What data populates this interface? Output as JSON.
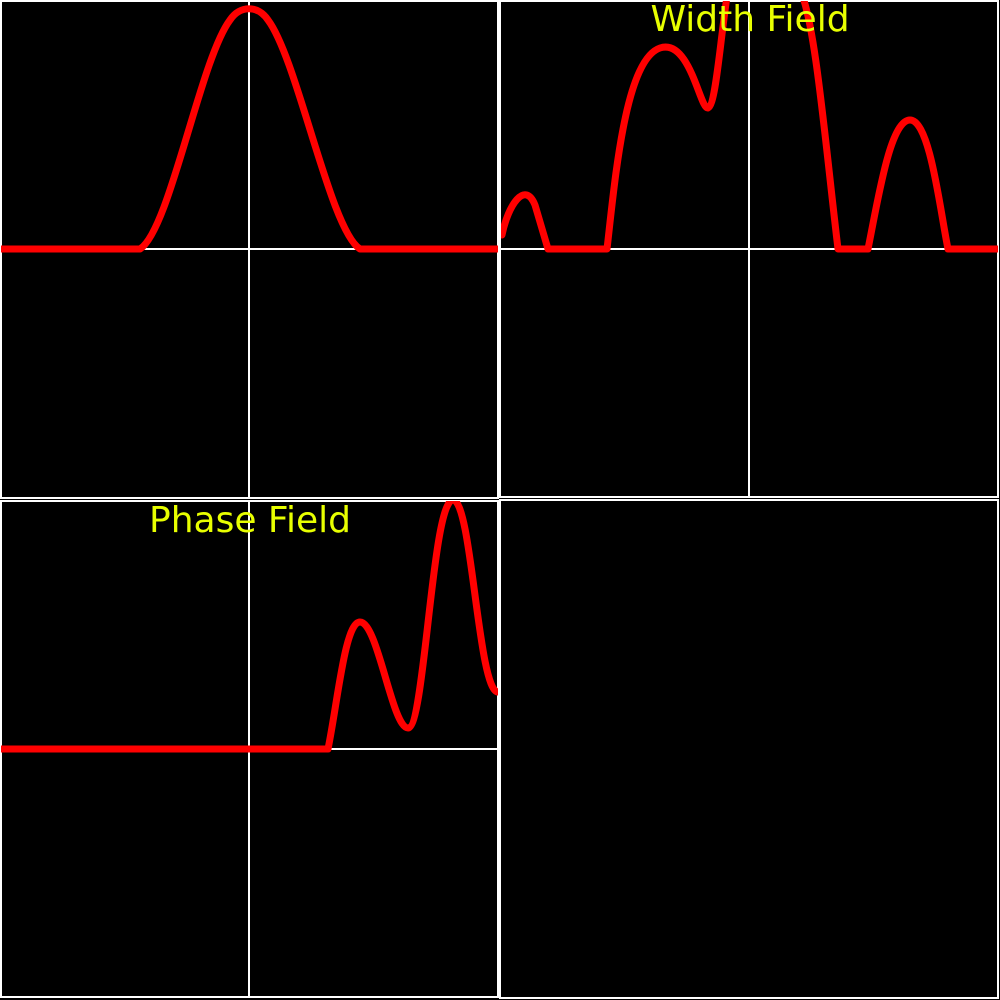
{
  "width_field": {
    "title": "Width Field"
  },
  "phase_field": {
    "title": "Phase Field"
  }
}
